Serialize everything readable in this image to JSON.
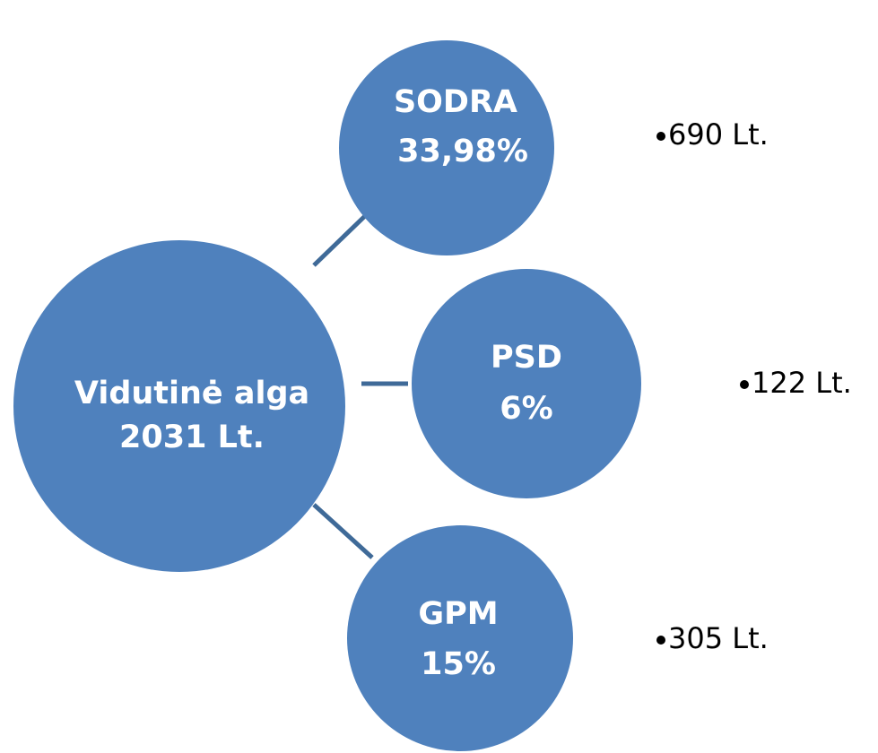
{
  "center": {
    "lines": [
      "Vidutinė alga",
      "2031 Lt."
    ]
  },
  "nodes": [
    {
      "lines": [
        "SODRA",
        "33,98%"
      ],
      "note": "690 Lt."
    },
    {
      "lines": [
        "PSD",
        "6%"
      ],
      "note": "122 Lt."
    },
    {
      "lines": [
        "GPM",
        "15%"
      ],
      "note": "305 Lt."
    }
  ]
}
